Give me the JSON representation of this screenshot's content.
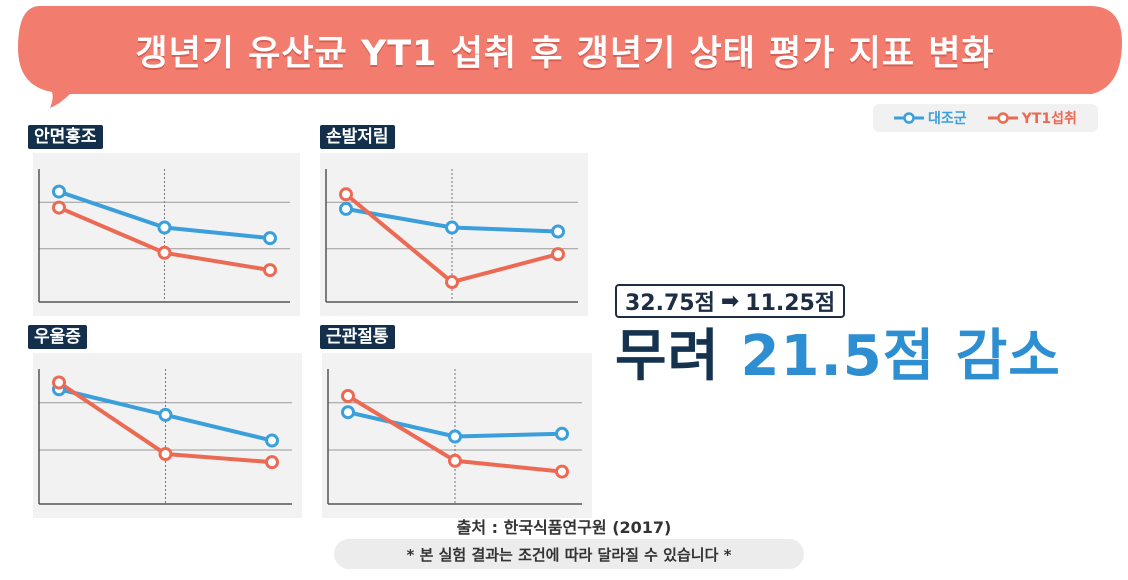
{
  "banner": {
    "title": "갱년기 유산균 YT1 섭취 후 갱년기 상태 평가 지표 변화"
  },
  "legend": {
    "items": [
      {
        "label": "대조군",
        "color": "#3b9fdb"
      },
      {
        "label": "YT1섭취",
        "color": "#ec6a53"
      }
    ]
  },
  "chart_data": [
    {
      "type": "line",
      "title": "안면홍조",
      "x": [
        0,
        1,
        2
      ],
      "ylim": [
        0,
        1
      ],
      "grid": true,
      "series": [
        {
          "name": "대조군",
          "color": "#3b9fdb",
          "values": [
            0.83,
            0.56,
            0.48
          ]
        },
        {
          "name": "YT1섭취",
          "color": "#ec6a53",
          "values": [
            0.71,
            0.37,
            0.24
          ]
        }
      ]
    },
    {
      "type": "line",
      "title": "손발저림",
      "x": [
        0,
        1,
        2
      ],
      "ylim": [
        0,
        1
      ],
      "grid": true,
      "series": [
        {
          "name": "대조군",
          "color": "#3b9fdb",
          "values": [
            0.7,
            0.56,
            0.53
          ]
        },
        {
          "name": "YT1섭취",
          "color": "#ec6a53",
          "values": [
            0.81,
            0.15,
            0.36
          ]
        }
      ]
    },
    {
      "type": "line",
      "title": "우울증",
      "x": [
        0,
        1,
        2
      ],
      "ylim": [
        0,
        1
      ],
      "grid": true,
      "series": [
        {
          "name": "대조군",
          "color": "#3b9fdb",
          "values": [
            0.85,
            0.66,
            0.47
          ]
        },
        {
          "name": "YT1섭취",
          "color": "#ec6a53",
          "values": [
            0.9,
            0.37,
            0.31
          ]
        }
      ]
    },
    {
      "type": "line",
      "title": "근관절통",
      "x": [
        0,
        1,
        2
      ],
      "ylim": [
        0,
        1
      ],
      "grid": true,
      "series": [
        {
          "name": "대조군",
          "color": "#3b9fdb",
          "values": [
            0.68,
            0.5,
            0.52
          ]
        },
        {
          "name": "YT1섭취",
          "color": "#ec6a53",
          "values": [
            0.8,
            0.32,
            0.24
          ]
        }
      ]
    }
  ],
  "score": {
    "from": "32.75점",
    "arrow": "➡",
    "to": "11.25점"
  },
  "headline": {
    "prefix": "무려",
    "value": "21.5점",
    "suffix": "감소"
  },
  "colors": {
    "banner": "#f27d6e",
    "label_bg": "#132f4c",
    "headline_dark": "#15324f",
    "headline_accent": "#2d8fd1"
  },
  "source": "출처 : 한국식품연구원 (2017)",
  "disclaimer": "* 본 실험 결과는 조건에 따라 달라질 수 있습니다 *"
}
